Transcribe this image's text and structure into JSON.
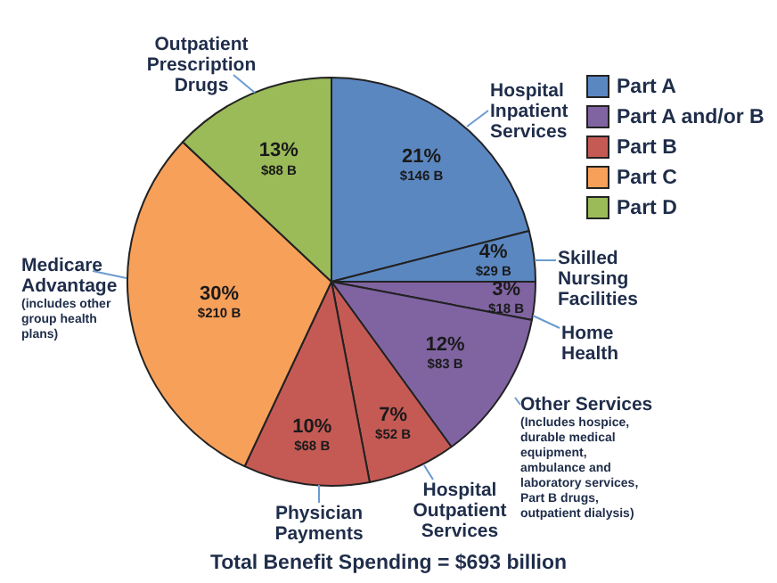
{
  "chart_data": {
    "type": "pie",
    "categories": [
      "Hospital Inpatient Services",
      "Skilled Nursing Facilities",
      "Home Health",
      "Other Services (Includes hospice, durable medical equipment, ambulance and laboratory services, Part B drugs, outpatient dialysis)",
      "Hospital Outpatient Services",
      "Physician Payments",
      "Medicare Advantage (includes other group health plans)",
      "Outpatient Prescription Drugs"
    ],
    "values": [
      21,
      4,
      3,
      12,
      7,
      10,
      30,
      13
    ],
    "value_labels": [
      "21%\n$146 B",
      "4%\n$29 B",
      "3%\n$18 B",
      "12%\n$83 B",
      "7%\n$52 B",
      "10%\n$68 B",
      "30%\n$210 B",
      "13%\n$88 B"
    ],
    "colors": [
      "#5b87c1",
      "#5b87c1",
      "#8064a2",
      "#8064a2",
      "#c55a55",
      "#c55a55",
      "#f7a05a",
      "#9bbb59"
    ],
    "legend": "right",
    "annotations": [
      "Part A",
      "Part A and/or B",
      "Part B",
      "Part C",
      "Part D",
      "Total Benefit Spending = $693 billion"
    ]
  }
}
